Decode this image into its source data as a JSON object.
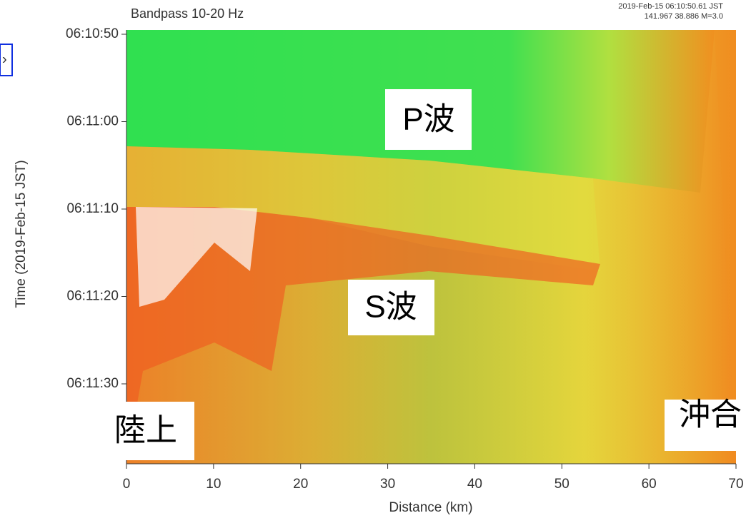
{
  "chart_data": {
    "type": "heatmap",
    "title": "Bandpass 10-20 Hz",
    "event_time": "2019-Feb-15 06:10:50.61 JST",
    "event_info": "141.967 38.886 M=3.0",
    "x_label": "Distance (km)",
    "y_label": "Time (2019-Feb-15 JST)",
    "xlim": [
      0,
      70
    ],
    "xticks": [
      0,
      10,
      20,
      30,
      40,
      50,
      60,
      70
    ],
    "yticks": [
      "06:10:50",
      "06:11:00",
      "06:11:10",
      "06:11:20",
      "06:11:30"
    ],
    "annotations": [
      "P波",
      "S波",
      "陸上",
      "沖合"
    ]
  }
}
